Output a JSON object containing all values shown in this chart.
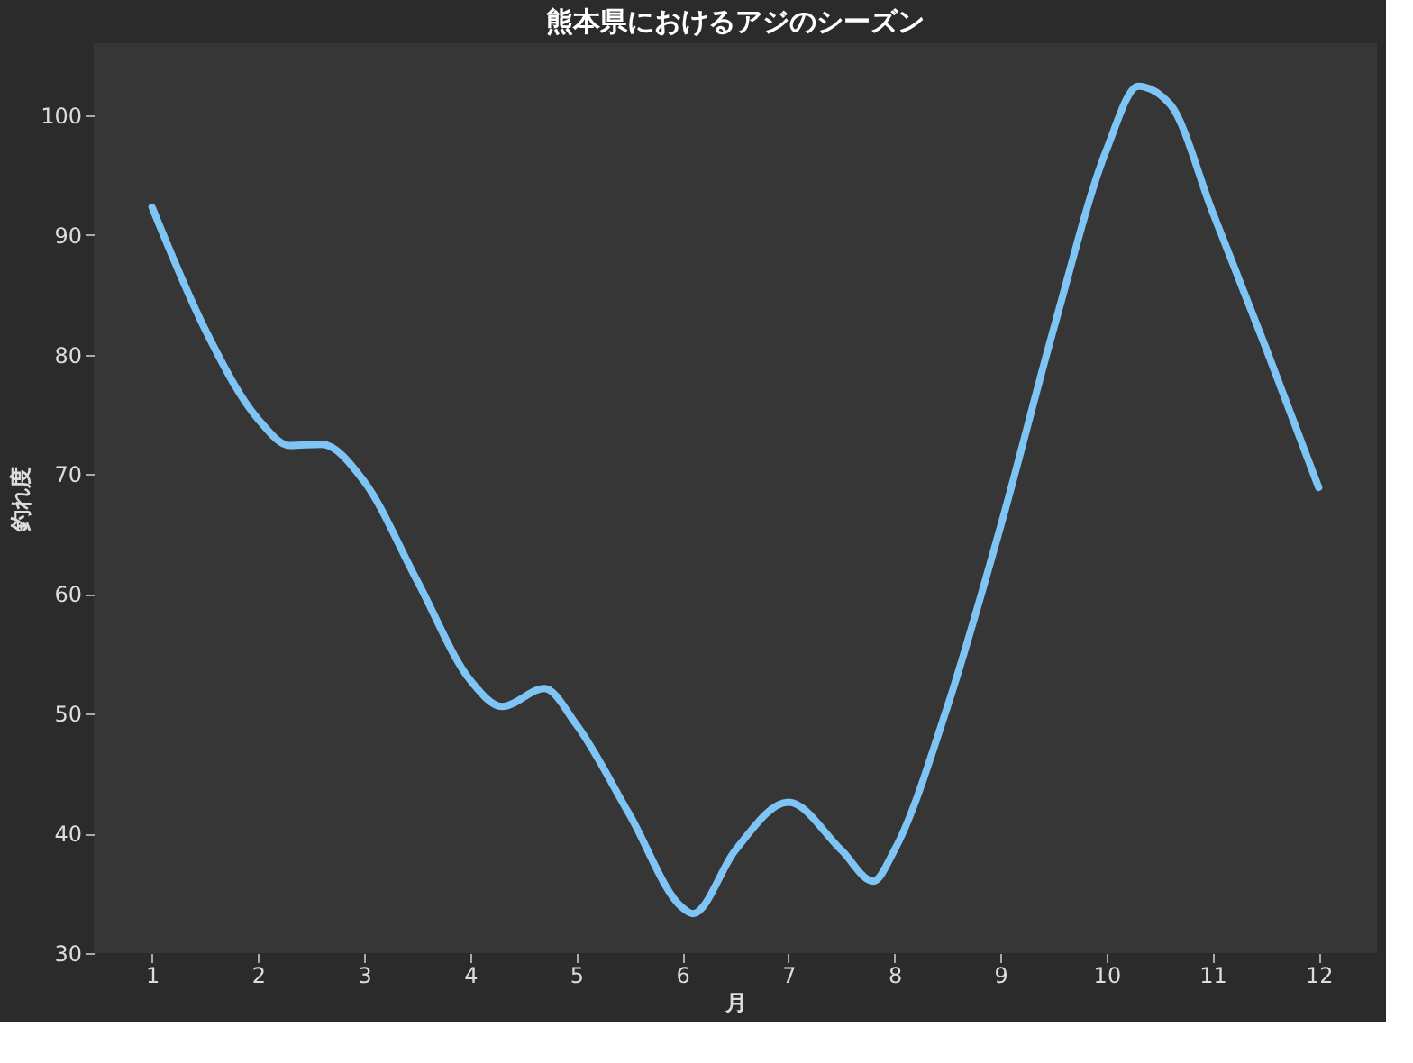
{
  "chart_data": {
    "type": "line",
    "title": "熊本県におけるアジのシーズン",
    "xlabel": "月",
    "ylabel": "釣れ度",
    "x": [
      1,
      1.5,
      2,
      2.3,
      2.6,
      3,
      3.5,
      4,
      4.3,
      4.7,
      5,
      5.5,
      6,
      6.1,
      6.5,
      7,
      7.5,
      7.8,
      8,
      8.5,
      9,
      9.5,
      10,
      10.3,
      10.6,
      11,
      11.5,
      12
    ],
    "series": [
      {
        "color": "#7ec4f5",
        "values": [
          92.3,
          82.1,
          74.6,
          72.4,
          72.5,
          69.4,
          61.1,
          52.8,
          50.6,
          52.1,
          49.1,
          41.6,
          33.8,
          33.3,
          38.6,
          42.6,
          38.6,
          36.0,
          38.6,
          50.6,
          65.6,
          82.1,
          97.1,
          102.4,
          100.9,
          91.9,
          80.6,
          68.9
        ]
      }
    ],
    "xlim": [
      0.45,
      12.55
    ],
    "ylim": [
      30,
      106
    ],
    "xticks": [
      1,
      2,
      3,
      4,
      5,
      6,
      7,
      8,
      9,
      10,
      11,
      12
    ],
    "yticks": [
      30,
      40,
      50,
      60,
      70,
      80,
      90,
      100
    ],
    "grid": false,
    "marker": "none",
    "line_style": "solid"
  }
}
